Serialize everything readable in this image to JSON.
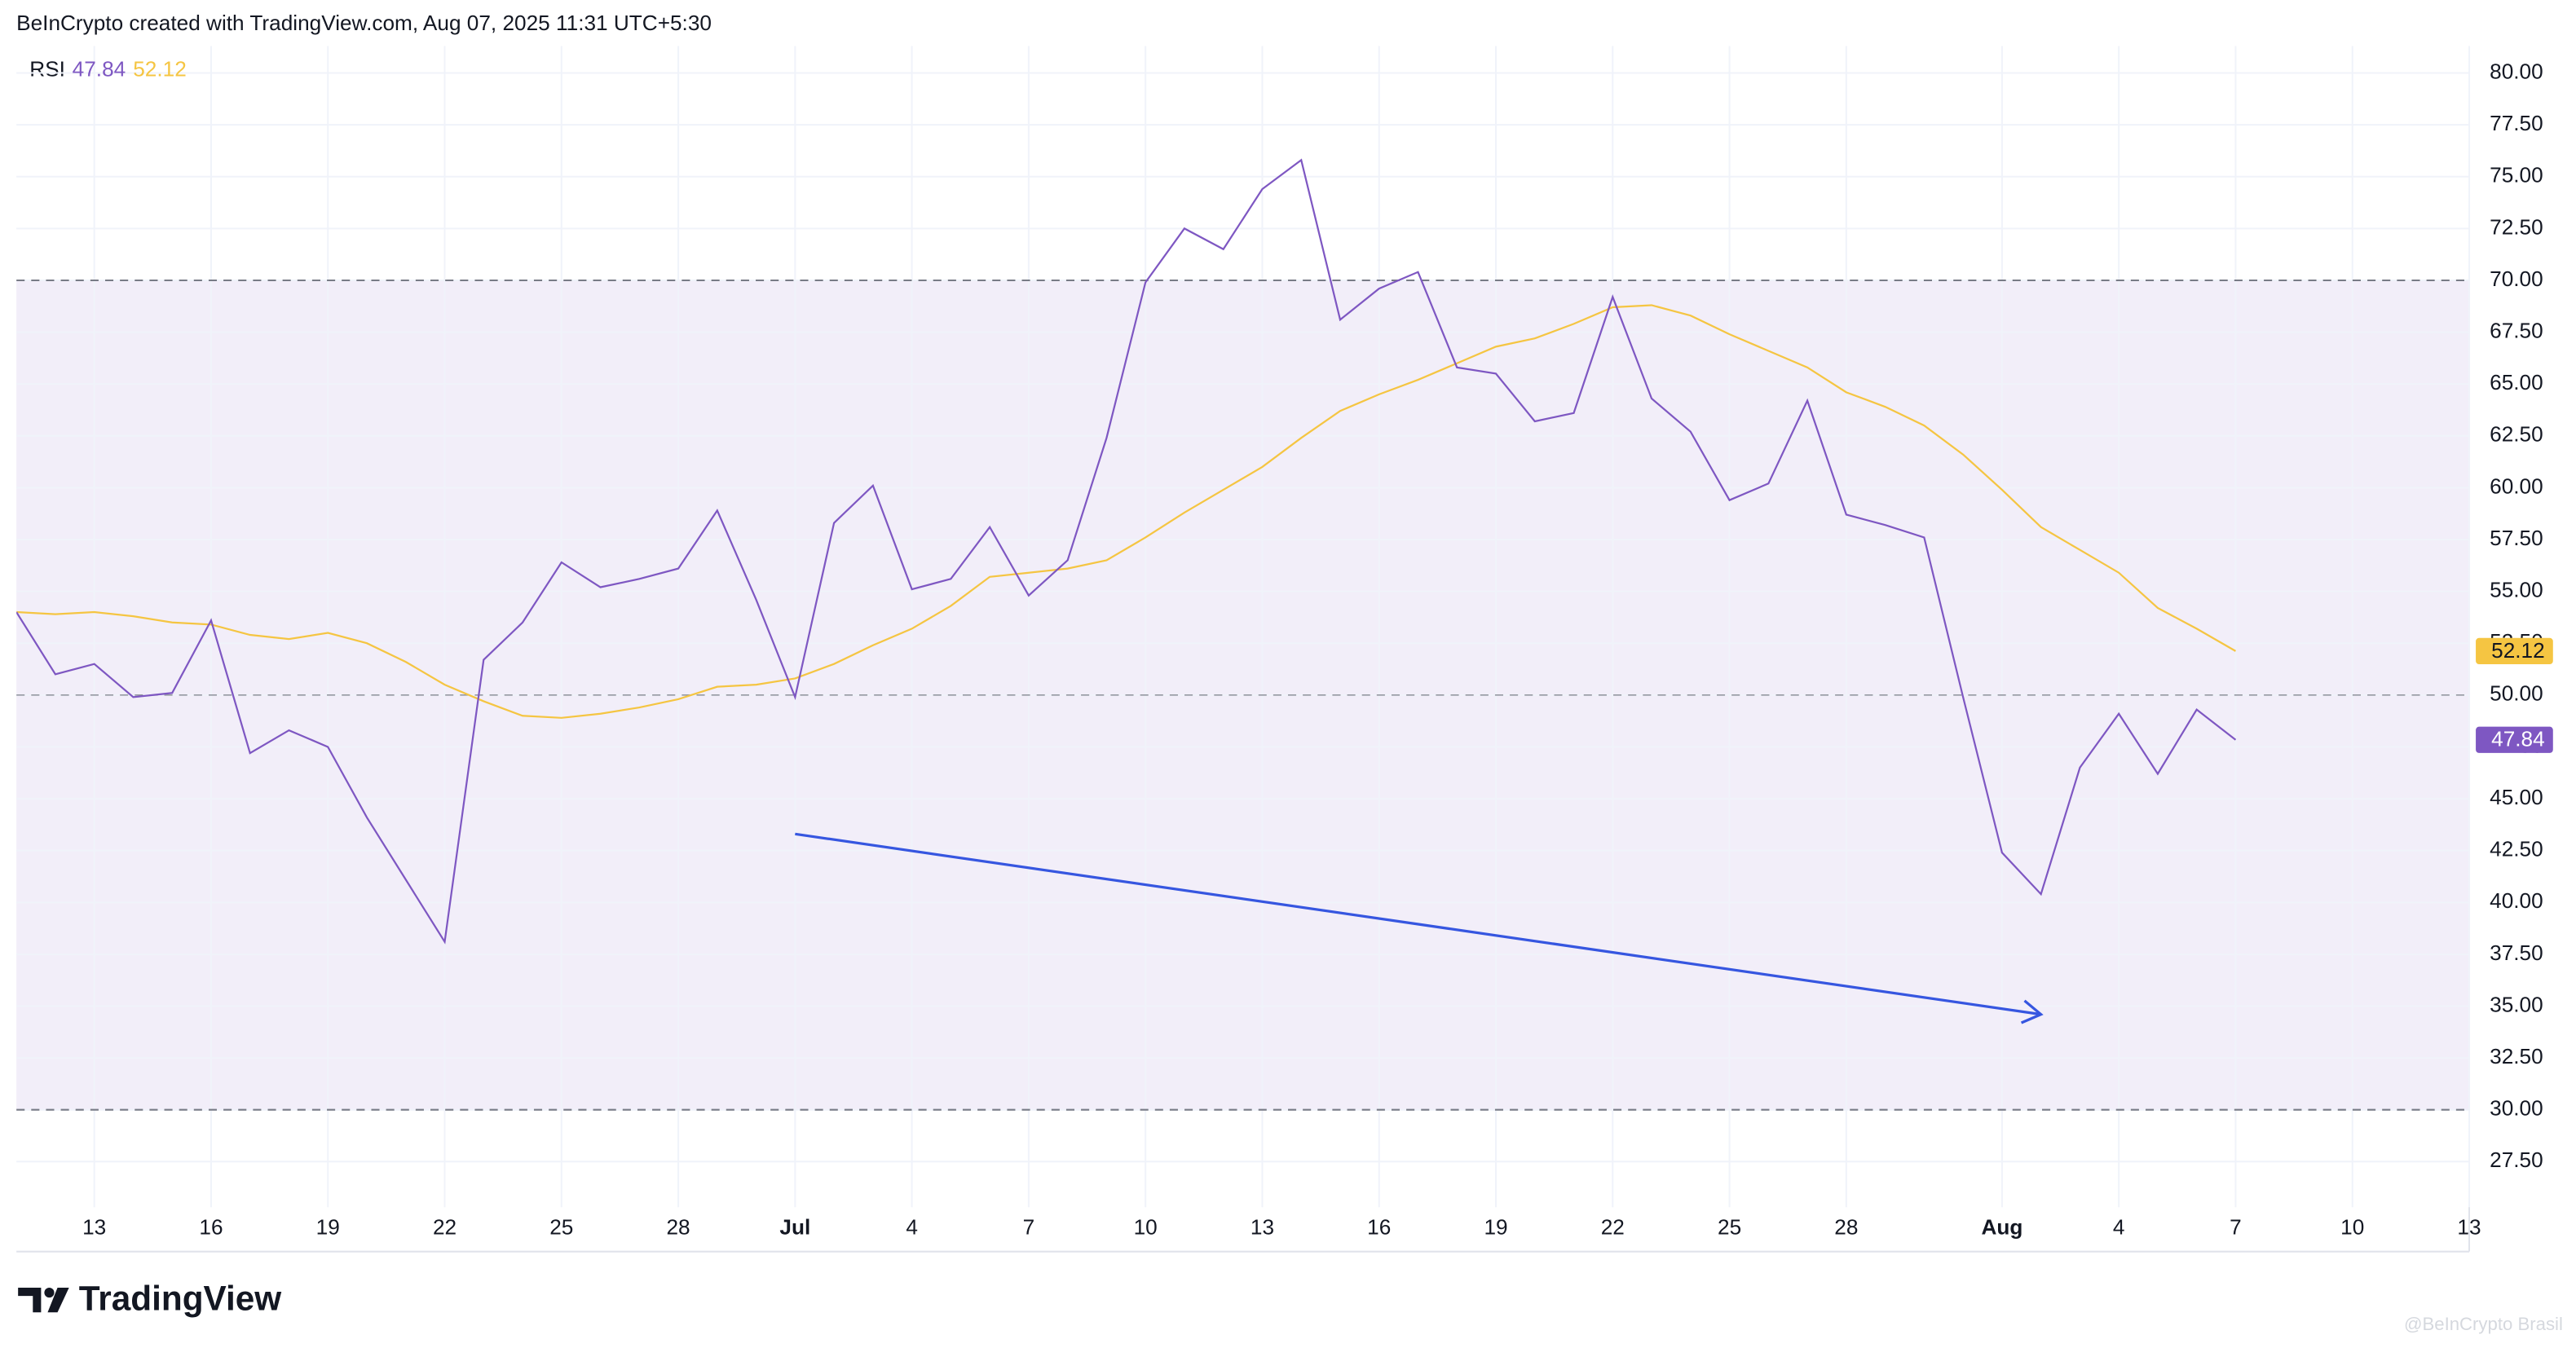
{
  "header": "BeInCrypto created with TradingView.com, Aug 07, 2025 11:31 UTC+5:30",
  "brand": "TradingView",
  "watermark": "@BeInCrypto Brasil",
  "chart_data": {
    "type": "line",
    "indicator": "RSI",
    "x": [
      "06-11",
      "06-12",
      "06-13",
      "06-14",
      "06-15",
      "06-16",
      "06-17",
      "06-18",
      "06-19",
      "06-20",
      "06-21",
      "06-22",
      "06-23",
      "06-24",
      "06-25",
      "06-26",
      "06-27",
      "06-28",
      "06-29",
      "06-30",
      "07-01",
      "07-02",
      "07-03",
      "07-04",
      "07-05",
      "07-06",
      "07-07",
      "07-08",
      "07-09",
      "07-10",
      "07-11",
      "07-12",
      "07-13",
      "07-14",
      "07-15",
      "07-16",
      "07-17",
      "07-18",
      "07-19",
      "07-20",
      "07-21",
      "07-22",
      "07-23",
      "07-24",
      "07-25",
      "07-26",
      "07-27",
      "07-28",
      "07-29",
      "07-30",
      "07-31",
      "08-01",
      "08-02",
      "08-03",
      "08-04",
      "08-05",
      "08-06",
      "08-07"
    ],
    "series": [
      {
        "color": "#7e57c2",
        "values": [
          54.0,
          51.0,
          51.5,
          49.9,
          50.1,
          53.6,
          47.2,
          48.3,
          47.5,
          44.1,
          41.1,
          38.1,
          51.7,
          53.5,
          56.4,
          55.2,
          55.6,
          56.1,
          58.9,
          54.6,
          49.9,
          58.3,
          60.1,
          55.1,
          55.6,
          58.1,
          54.8,
          56.5,
          62.4,
          69.9,
          72.5,
          71.5,
          74.4,
          75.8,
          68.1,
          69.6,
          70.4,
          65.8,
          65.5,
          63.2,
          63.6,
          69.2,
          64.3,
          62.7,
          59.4,
          60.2,
          64.2,
          58.7,
          58.2,
          57.6,
          49.9,
          42.4,
          40.4,
          46.5,
          49.1,
          46.2,
          49.3,
          47.84
        ]
      },
      {
        "color": "#f5c542",
        "values": [
          54.0,
          53.9,
          54.0,
          53.8,
          53.5,
          53.4,
          52.9,
          52.7,
          53.0,
          52.5,
          51.6,
          50.5,
          49.7,
          49.0,
          48.9,
          49.1,
          49.4,
          49.8,
          50.4,
          50.5,
          50.8,
          51.5,
          52.4,
          53.2,
          54.3,
          55.7,
          55.9,
          56.1,
          56.5,
          57.6,
          58.8,
          59.9,
          61.0,
          62.4,
          63.7,
          64.5,
          65.2,
          66.0,
          66.8,
          67.2,
          67.9,
          68.7,
          68.8,
          68.3,
          67.4,
          66.6,
          65.8,
          64.6,
          63.9,
          63.0,
          61.6,
          59.9,
          58.1,
          57.0,
          55.9,
          54.2,
          53.2,
          52.12
        ]
      }
    ],
    "bands": {
      "upper": 70,
      "middle": 50,
      "lower": 30,
      "color": "#7e57c2"
    },
    "trend_line": {
      "x": [
        "07-01",
        "08-02"
      ],
      "values": [
        43.3,
        34.6
      ],
      "color": "#3656e0"
    },
    "xlim": [
      "06-11",
      "08-13"
    ],
    "xticks": [
      {
        "value": "06-13",
        "label": "13"
      },
      {
        "value": "06-16",
        "label": "16"
      },
      {
        "value": "06-19",
        "label": "19"
      },
      {
        "value": "06-22",
        "label": "22"
      },
      {
        "value": "06-25",
        "label": "25"
      },
      {
        "value": "06-28",
        "label": "28"
      },
      {
        "value": "07-01",
        "label": "Jul"
      },
      {
        "value": "07-04",
        "label": "4"
      },
      {
        "value": "07-07",
        "label": "7"
      },
      {
        "value": "07-10",
        "label": "10"
      },
      {
        "value": "07-13",
        "label": "13"
      },
      {
        "value": "07-16",
        "label": "16"
      },
      {
        "value": "07-19",
        "label": "19"
      },
      {
        "value": "07-22",
        "label": "22"
      },
      {
        "value": "07-25",
        "label": "25"
      },
      {
        "value": "07-28",
        "label": "28"
      },
      {
        "value": "08-01",
        "label": "Aug"
      },
      {
        "value": "08-04",
        "label": "4"
      },
      {
        "value": "08-07",
        "label": "7"
      },
      {
        "value": "08-10",
        "label": "10"
      },
      {
        "value": "08-13",
        "label": "13"
      }
    ],
    "ylim": [
      25.3,
      81.3
    ],
    "yticks": [
      {
        "value": 27.5,
        "label": "27.50"
      },
      {
        "value": 30,
        "label": "30.00"
      },
      {
        "value": 32.5,
        "label": "32.50"
      },
      {
        "value": 35,
        "label": "35.00"
      },
      {
        "value": 37.5,
        "label": "37.50"
      },
      {
        "value": 40,
        "label": "40.00"
      },
      {
        "value": 42.5,
        "label": "42.50"
      },
      {
        "value": 45,
        "label": "45.00"
      },
      {
        "value": 47.5,
        "label": "47.50"
      },
      {
        "value": 50,
        "label": "50.00"
      },
      {
        "value": 52.5,
        "label": "52.50"
      },
      {
        "value": 55,
        "label": "55.00"
      },
      {
        "value": 57.5,
        "label": "57.50"
      },
      {
        "value": 60,
        "label": "60.00"
      },
      {
        "value": 62.5,
        "label": "62.50"
      },
      {
        "value": 65,
        "label": "65.00"
      },
      {
        "value": 67.5,
        "label": "67.50"
      },
      {
        "value": 70,
        "label": "70.00"
      },
      {
        "value": 72.5,
        "label": "72.50"
      },
      {
        "value": 75,
        "label": "75.00"
      },
      {
        "value": 77.5,
        "label": "77.50"
      },
      {
        "value": 80,
        "label": "80.00"
      }
    ],
    "grid": true
  }
}
